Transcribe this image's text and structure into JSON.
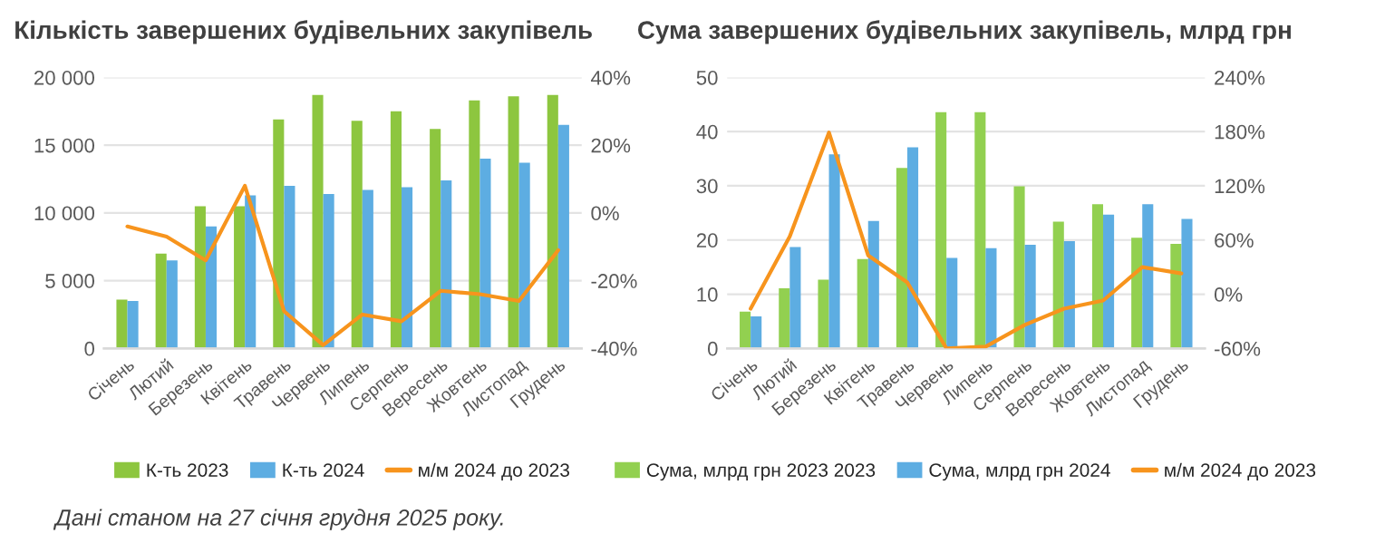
{
  "chart_data": [
    {
      "type": "bar",
      "title": "Кількість завершених будівельних закупівель",
      "categories": [
        "Січень",
        "Лютий",
        "Березень",
        "Квітень",
        "Травень",
        "Червень",
        "Липень",
        "Серпень",
        "Вересень",
        "Жовтень",
        "Листопад",
        "Грудень"
      ],
      "series": [
        {
          "name": "К-ть 2023",
          "color": "#8dc63f",
          "values": [
            3600,
            7000,
            10500,
            10500,
            16900,
            18700,
            16800,
            17500,
            16200,
            18300,
            18600,
            18700
          ]
        },
        {
          "name": "К-ть 2024",
          "color": "#5dade2",
          "values": [
            3500,
            6500,
            9000,
            11300,
            12000,
            11400,
            11700,
            11900,
            12400,
            14000,
            13700,
            16500
          ]
        },
        {
          "name": "м/м 2024 до 2023",
          "color": "#f7941d",
          "type": "line",
          "axis": "y2",
          "values": [
            -4,
            -7,
            -14,
            8,
            -29,
            -39,
            -30,
            -32,
            -23,
            -24,
            -26,
            -11
          ]
        }
      ],
      "ylim": [
        0,
        20000
      ],
      "yticks": [
        0,
        {
          "value": 5000,
          "label": "5 000"
        },
        {
          "value": 10000,
          "label": "10 000"
        },
        {
          "value": 15000,
          "label": "15 000"
        },
        {
          "value": 20000,
          "label": "20 000"
        }
      ],
      "y2lim": [
        -40,
        40
      ],
      "y2ticks": [
        {
          "value": -40,
          "label": "-40%"
        },
        {
          "value": -20,
          "label": "-20%"
        },
        {
          "value": 0,
          "label": "0%"
        },
        {
          "value": 20,
          "label": "20%"
        },
        {
          "value": 40,
          "label": "40%"
        }
      ],
      "grid": "y",
      "legend": "bottom",
      "marker": "none",
      "line_style": "solid",
      "annotations": [
        "Дані станом на 27 січня грудня 2025 року."
      ]
    },
    {
      "type": "bar",
      "title": "Сума завершених будівельних закупівель, млрд грн",
      "categories": [
        "Січень",
        "Лютий",
        "Березень",
        "Квітень",
        "Травень",
        "Червень",
        "Липень",
        "Серпень",
        "Вересень",
        "Жовтень",
        "Листопад",
        "Грудень"
      ],
      "series": [
        {
          "name": "Сума, млрд грн 2023 2023",
          "color": "#92d050",
          "values": [
            6.8,
            11.1,
            12.7,
            16.5,
            33.3,
            43.6,
            43.6,
            29.9,
            23.4,
            26.6,
            20.4,
            19.3
          ]
        },
        {
          "name": "Сума, млрд грн 2024",
          "color": "#5dade2",
          "values": [
            5.9,
            18.7,
            35.8,
            23.5,
            37.1,
            16.7,
            18.5,
            19.1,
            19.8,
            24.7,
            26.6,
            23.9
          ]
        },
        {
          "name": "м/м 2024 до 2023",
          "color": "#f7941d",
          "type": "line",
          "axis": "y2",
          "values": [
            -16,
            64,
            179,
            43,
            13,
            -60,
            -58,
            -34,
            -16,
            -7,
            30,
            23
          ]
        }
      ],
      "ylim": [
        0,
        50
      ],
      "yticks": [
        0,
        10,
        20,
        30,
        40,
        50
      ],
      "y2lim": [
        -60,
        240
      ],
      "y2ticks": [
        {
          "value": -60,
          "label": "-60%"
        },
        {
          "value": 0,
          "label": "0%"
        },
        {
          "value": 60,
          "label": "60%"
        },
        {
          "value": 120,
          "label": "120%"
        },
        {
          "value": 180,
          "label": "180%"
        },
        {
          "value": 240,
          "label": "240%"
        }
      ],
      "grid": "y",
      "legend": "bottom",
      "marker": "none",
      "line_style": "solid"
    }
  ]
}
